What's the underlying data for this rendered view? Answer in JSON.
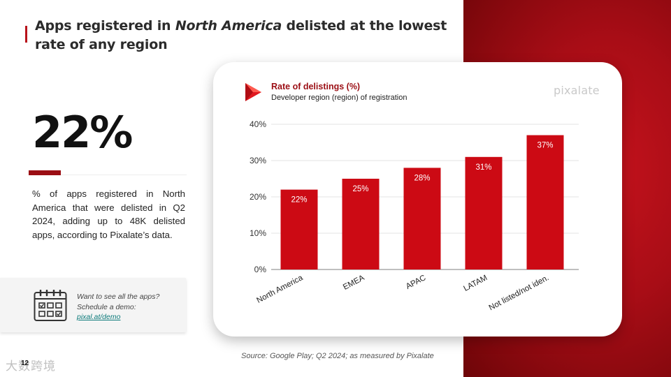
{
  "slide": {
    "title_part1": "Apps registered in ",
    "title_italic": "North America",
    "title_part2": " delisted at the lowest rate of any region",
    "big_number": "22%",
    "description": "% of apps registered in North America that were delisted in Q2 2024, adding up to 48K delisted apps, according to Pixalate’s data.",
    "cta_text": "Want to see all the apps? Schedule a demo: ",
    "cta_link": "pixal.at/demo",
    "page_number": "12",
    "watermark": "大数跨境",
    "source": "Source: Google Play; Q2 2024; as measured by Pixalate",
    "brand": "pixalate",
    "colors": {
      "accent": "#b8121b",
      "bar": "#cc0a14",
      "panel": "#a80d16",
      "link": "#0c7a7a"
    },
    "icons": {
      "calendar": "calendar-icon",
      "play_store": "play-store-logo"
    }
  },
  "chart_data": {
    "type": "bar",
    "title": "Rate of delistings (%)",
    "subtitle": "Developer region (region) of registration",
    "categories": [
      "North America",
      "EMEA",
      "APAC",
      "LATAM",
      "Not listed/not iden."
    ],
    "values": [
      22,
      25,
      28,
      31,
      37
    ],
    "data_labels": [
      "22%",
      "25%",
      "28%",
      "31%",
      "37%"
    ],
    "ylim": [
      0,
      40
    ],
    "yticks": [
      0,
      10,
      20,
      30,
      40
    ],
    "ytick_labels": [
      "0%",
      "10%",
      "20%",
      "30%",
      "40%"
    ],
    "grid": true,
    "legend": "none",
    "xlabel": "",
    "ylabel": ""
  }
}
